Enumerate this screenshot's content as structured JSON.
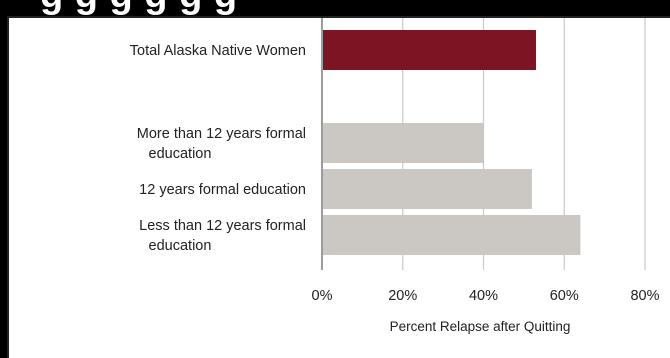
{
  "chart_data": {
    "type": "bar",
    "orientation": "horizontal",
    "categories": [
      [
        "Total Alaska Native Women"
      ],
      [
        "More than 12 years formal",
        "education"
      ],
      [
        "12 years formal education"
      ],
      [
        "Less than 12 years formal",
        "education"
      ]
    ],
    "values": [
      53,
      40,
      52,
      64
    ],
    "colors": [
      "#7d1424",
      "#cbc7c3",
      "#cbc7c3",
      "#cbc7c3"
    ],
    "xlim": [
      0,
      80
    ],
    "xticks": [
      0,
      20,
      40,
      60,
      80
    ],
    "tick_suffix": "%",
    "xlabel": "Percent Relapse after Quitting",
    "grid": "vertical"
  },
  "banner": {
    "partial_text": "g     g     g     g  g     g"
  }
}
